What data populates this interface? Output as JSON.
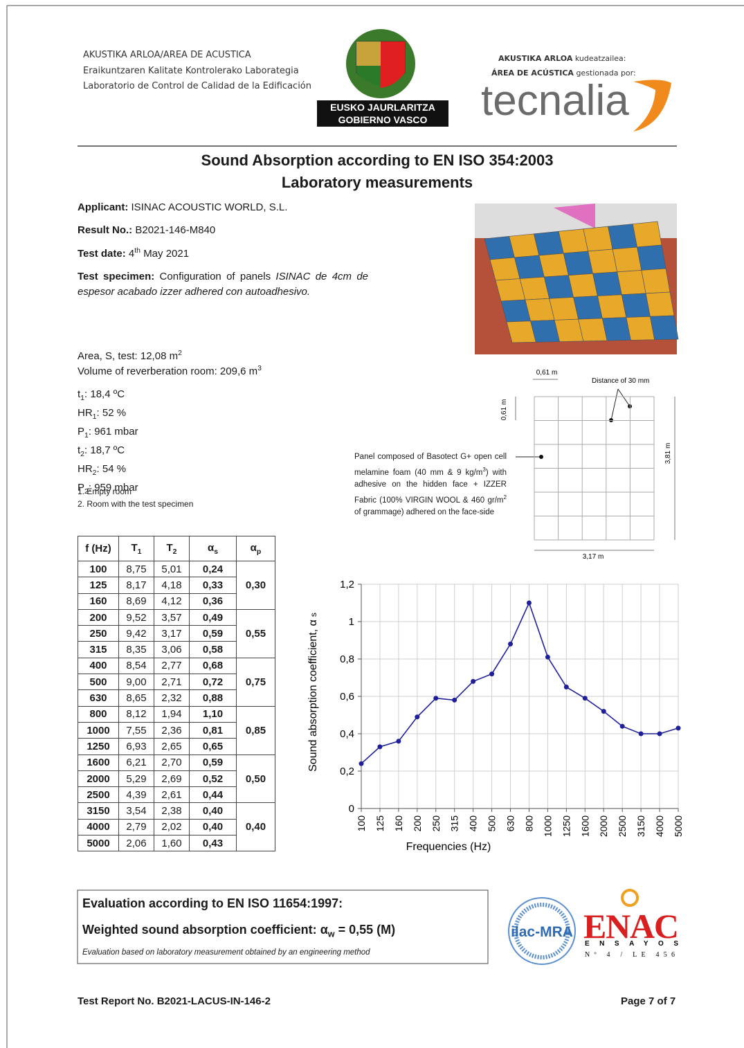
{
  "header": {
    "lab_lines": [
      "AKUSTIKA ARLOA/AREA DE ACUSTICA",
      "Eraikuntzaren Kalitate Kontrolerako Laborategia",
      "Laboratorio de Control de Calidad de la Edificación"
    ],
    "government": [
      "EUSKO JAURLARITZA",
      "GOBIERNO VASCO"
    ],
    "manager_lines": [
      {
        "bold": "AKUSTIKA ARLOA",
        "rest": "kudeatzailea:"
      },
      {
        "bold": "ÁREA DE ACÚSTICA",
        "rest": "gestionada por:"
      }
    ],
    "brand": "tecnalia"
  },
  "title": "Sound Absorption according to EN ISO 354:2003",
  "subtitle": "Laboratory measurements",
  "info": {
    "applicant": {
      "label": "Applicant:",
      "value": "ISINAC ACOUSTIC WORLD, S.L."
    },
    "result": {
      "label": "Result No.:",
      "value": "B2021-146-M840"
    },
    "test_date": {
      "label": "Test date:",
      "day": "4",
      "suffix": "th",
      "rest": "May 2021"
    },
    "specimen": {
      "label": "Test specimen:",
      "value": "Configuration of panels",
      "value_italic": "ISINAC de 4cm de espesor acabado izzer adhered con autoadhesivo."
    }
  },
  "room": {
    "area": {
      "text": "Area, S, test: 12,08 m",
      "sup": "2"
    },
    "volume": {
      "text": "Volume of reverberation room: 209,6 m",
      "sup": "3"
    }
  },
  "conditions": [
    {
      "symbol": "t",
      "sub": "1",
      "value": ": 18,4 ºC"
    },
    {
      "symbol": "HR",
      "sub": "1",
      "value": ": 52 %"
    },
    {
      "symbol": "P",
      "sub": "1",
      "value": ": 961 mbar"
    },
    {
      "symbol": "t",
      "sub": "2",
      "value": ": 18,7 ºC"
    },
    {
      "symbol": "HR",
      "sub": "2",
      "value": ": 54 %"
    },
    {
      "symbol": "P",
      "sub": "2",
      "value": ": 959 mbar"
    }
  ],
  "notes": [
    "1. Empty room",
    "2. Room with the test specimen"
  ],
  "diagram": {
    "panel_width": "0,61 m",
    "panel_height": "0,61 m",
    "distance": "Distance of 30 mm",
    "total_height": "3,81 m",
    "total_width": "3,17 m",
    "description_parts": [
      "Panel composed of Basotect G+ open cell melamine foam (40 mm & 9 kg/m",
      "3",
      ") with adhesive on the hidden face + IZZER Fabric (100% VIRGIN WOOL & 460 gr/m",
      "2",
      " of grammage) adhered on the face-side"
    ]
  },
  "table": {
    "headers": [
      "f (Hz)",
      "T",
      "T",
      "α",
      "α"
    ],
    "header_subs": [
      null,
      "1",
      "2",
      "s",
      "p"
    ],
    "rows": [
      [
        "100",
        "8,75",
        "5,01",
        "0,24"
      ],
      [
        "125",
        "8,17",
        "4,18",
        "0,33"
      ],
      [
        "160",
        "8,69",
        "4,12",
        "0,36"
      ],
      [
        "200",
        "9,52",
        "3,57",
        "0,49"
      ],
      [
        "250",
        "9,42",
        "3,17",
        "0,59"
      ],
      [
        "315",
        "8,35",
        "3,06",
        "0,58"
      ],
      [
        "400",
        "8,54",
        "2,77",
        "0,68"
      ],
      [
        "500",
        "9,00",
        "2,71",
        "0,72"
      ],
      [
        "630",
        "8,65",
        "2,32",
        "0,88"
      ],
      [
        "800",
        "8,12",
        "1,94",
        "1,10"
      ],
      [
        "1000",
        "7,55",
        "2,36",
        "0,81"
      ],
      [
        "1250",
        "6,93",
        "2,65",
        "0,65"
      ],
      [
        "1600",
        "6,21",
        "2,70",
        "0,59"
      ],
      [
        "2000",
        "5,29",
        "2,69",
        "0,52"
      ],
      [
        "2500",
        "4,39",
        "2,61",
        "0,44"
      ],
      [
        "3150",
        "3,54",
        "2,38",
        "0,40"
      ],
      [
        "4000",
        "2,79",
        "2,02",
        "0,40"
      ],
      [
        "5000",
        "2,06",
        "1,60",
        "0,43"
      ]
    ],
    "alpha_p": [
      "0,30",
      "0,55",
      "0,75",
      "0,85",
      "0,50",
      "0,40"
    ]
  },
  "chart_data": {
    "type": "line",
    "ylabel": "Sound absorption coefficient, α",
    "ylabel_sub": "s",
    "xlabel": "Frequencies (Hz)",
    "categories": [
      "100",
      "125",
      "160",
      "200",
      "250",
      "315",
      "400",
      "500",
      "630",
      "800",
      "1000",
      "1250",
      "1600",
      "2000",
      "2500",
      "3150",
      "4000",
      "5000"
    ],
    "values": [
      0.24,
      0.33,
      0.36,
      0.49,
      0.59,
      0.58,
      0.68,
      0.72,
      0.88,
      1.1,
      0.81,
      0.65,
      0.59,
      0.52,
      0.44,
      0.4,
      0.4,
      0.43
    ],
    "color": "#1f1f9a",
    "ylim": [
      0,
      1.2
    ],
    "yticks": [
      0,
      {
        "value": 0.2,
        "label": "0,2"
      },
      {
        "value": 0.4,
        "label": "0,4"
      },
      {
        "value": 0.6,
        "label": "0,6"
      },
      {
        "value": 0.8,
        "label": "0,8"
      },
      1,
      {
        "value": 1.2,
        "label": "1,2"
      }
    ],
    "grid": true
  },
  "evaluation": {
    "title": "Evaluation according to EN ISO 11654:1997:",
    "label": "Weighted sound absorption coefficient:",
    "symbol": "α",
    "sub": "w",
    "value": "= 0,55 (M)",
    "note": "Evaluation based on laboratory measurement obtained by an engineering method"
  },
  "accreditation": {
    "ilac": "ilac-MRA",
    "enac": "ENAC",
    "enac_sub": "ENSAYOS",
    "number": "Nº 4 / LE 456"
  },
  "footer": {
    "report": "Test Report No. B2021-LACUS-IN-146-2",
    "page": "Page 7 of 7"
  }
}
